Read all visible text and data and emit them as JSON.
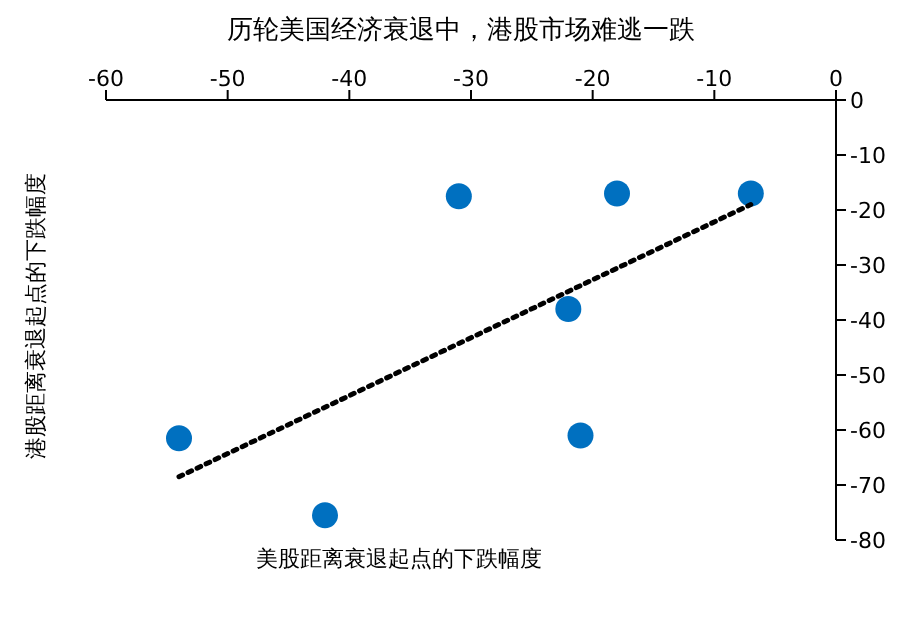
{
  "chart_data": {
    "type": "scatter",
    "title": "历轮美国经济衰退中，港股市场难逃一跌",
    "xlabel": "美股距离衰退起点的下跌幅度",
    "ylabel": "港股距离衰退起点的下跌幅度",
    "xlim": [
      -60,
      0
    ],
    "xticks": [
      -60,
      -50,
      -40,
      -30,
      -20,
      -10,
      0
    ],
    "ylim": [
      -80,
      0
    ],
    "yticks": [
      -80,
      -70,
      -60,
      -50,
      -40,
      -30,
      -20,
      -10,
      0
    ],
    "grid": false,
    "legend": false,
    "marker": "circle",
    "series": [
      {
        "color": "#0070c0",
        "x": [
          -54,
          -42,
          -31,
          -22,
          -21,
          -18,
          -7
        ],
        "values": [
          -61.5,
          -75.5,
          -17.5,
          -38,
          -61,
          -17,
          -17
        ]
      },
      {
        "type": "line",
        "marker": "none",
        "color": "#000000",
        "line_style": "dotted",
        "x": [
          -54,
          -7
        ],
        "values": [
          -68.5,
          -19
        ]
      }
    ]
  }
}
